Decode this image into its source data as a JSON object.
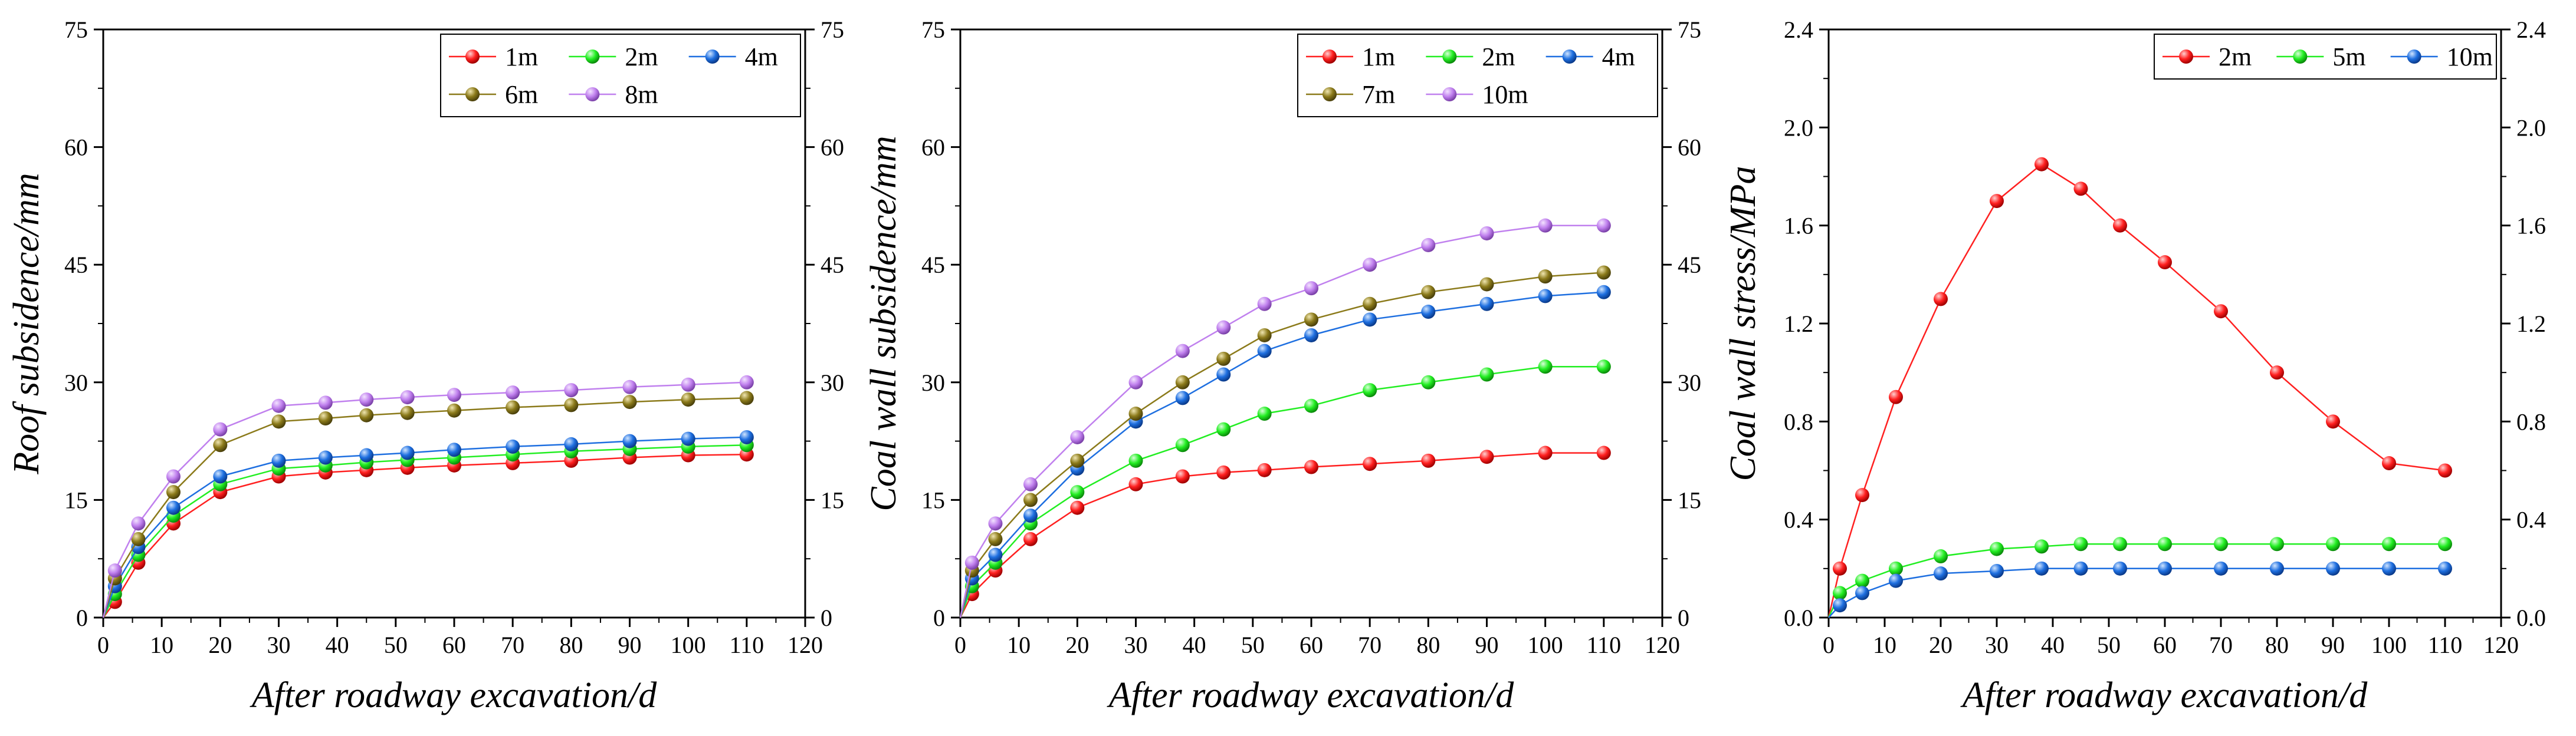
{
  "chart_data": [
    {
      "type": "line",
      "xlabel": "After roadway excavation/d",
      "ylabel": "Roof subsidence/mm",
      "xlim": [
        0,
        120
      ],
      "ylim": [
        0,
        75
      ],
      "x_ticks": [
        0,
        10,
        20,
        30,
        40,
        50,
        60,
        70,
        80,
        90,
        100,
        110,
        120
      ],
      "y_ticks": [
        0,
        15,
        30,
        45,
        60,
        75
      ],
      "right_axis_mirror": true,
      "legend_position": "top-right",
      "legend_columns": 3,
      "series": [
        {
          "name": "1m",
          "color": "#ff2020",
          "x": [
            0,
            2,
            6,
            12,
            20,
            30,
            38,
            45,
            52,
            60,
            70,
            80,
            90,
            100,
            110
          ],
          "y": [
            0,
            2,
            7,
            12,
            16,
            18,
            18.5,
            18.8,
            19.1,
            19.4,
            19.7,
            20,
            20.4,
            20.7,
            20.8
          ]
        },
        {
          "name": "2m",
          "color": "#22ee22",
          "x": [
            0,
            2,
            6,
            12,
            20,
            30,
            38,
            45,
            52,
            60,
            70,
            80,
            90,
            100,
            110
          ],
          "y": [
            0,
            3,
            8,
            13,
            17,
            19,
            19.4,
            19.8,
            20.1,
            20.4,
            20.8,
            21.2,
            21.5,
            21.8,
            22
          ]
        },
        {
          "name": "4m",
          "color": "#1e6fe0",
          "x": [
            0,
            2,
            6,
            12,
            20,
            30,
            38,
            45,
            52,
            60,
            70,
            80,
            90,
            100,
            110
          ],
          "y": [
            0,
            4,
            9,
            14,
            18,
            20,
            20.4,
            20.7,
            21,
            21.4,
            21.8,
            22.1,
            22.5,
            22.8,
            23
          ]
        },
        {
          "name": "6m",
          "color": "#8b7a1a",
          "x": [
            0,
            2,
            6,
            12,
            20,
            30,
            38,
            45,
            52,
            60,
            70,
            80,
            90,
            100,
            110
          ],
          "y": [
            0,
            5,
            10,
            16,
            22,
            25,
            25.4,
            25.8,
            26.1,
            26.4,
            26.8,
            27.1,
            27.5,
            27.8,
            28
          ]
        },
        {
          "name": "8m",
          "color": "#c080ee",
          "x": [
            0,
            2,
            6,
            12,
            20,
            30,
            38,
            45,
            52,
            60,
            70,
            80,
            90,
            100,
            110
          ],
          "y": [
            0,
            6,
            12,
            18,
            24,
            27,
            27.4,
            27.8,
            28.1,
            28.4,
            28.7,
            29,
            29.4,
            29.7,
            30
          ]
        }
      ]
    },
    {
      "type": "line",
      "xlabel": "After roadway excavation/d",
      "ylabel": "Coal wall subsidence/mm",
      "xlim": [
        0,
        120
      ],
      "ylim": [
        0,
        75
      ],
      "x_ticks": [
        0,
        10,
        20,
        30,
        40,
        50,
        60,
        70,
        80,
        90,
        100,
        110,
        120
      ],
      "y_ticks": [
        0,
        15,
        30,
        45,
        60,
        75
      ],
      "right_axis_mirror": true,
      "legend_position": "top-right",
      "legend_columns": 3,
      "series": [
        {
          "name": "1m",
          "color": "#ff2020",
          "x": [
            0,
            2,
            6,
            12,
            20,
            30,
            38,
            45,
            52,
            60,
            70,
            80,
            90,
            100,
            110
          ],
          "y": [
            0,
            3,
            6,
            10,
            14,
            17,
            18,
            18.5,
            18.8,
            19.2,
            19.6,
            20,
            20.5,
            21,
            21
          ]
        },
        {
          "name": "2m",
          "color": "#22ee22",
          "x": [
            0,
            2,
            6,
            12,
            20,
            30,
            38,
            45,
            52,
            60,
            70,
            80,
            90,
            100,
            110
          ],
          "y": [
            0,
            4,
            7,
            12,
            16,
            20,
            22,
            24,
            26,
            27,
            29,
            30,
            31,
            32,
            32
          ]
        },
        {
          "name": "4m",
          "color": "#1e6fe0",
          "x": [
            0,
            2,
            6,
            12,
            20,
            30,
            38,
            45,
            52,
            60,
            70,
            80,
            90,
            100,
            110
          ],
          "y": [
            0,
            5,
            8,
            13,
            19,
            25,
            28,
            31,
            34,
            36,
            38,
            39,
            40,
            41,
            41.5
          ]
        },
        {
          "name": "7m",
          "color": "#8b7a1a",
          "x": [
            0,
            2,
            6,
            12,
            20,
            30,
            38,
            45,
            52,
            60,
            70,
            80,
            90,
            100,
            110
          ],
          "y": [
            0,
            6,
            10,
            15,
            20,
            26,
            30,
            33,
            36,
            38,
            40,
            41.5,
            42.5,
            43.5,
            44
          ]
        },
        {
          "name": "10m",
          "color": "#c080ee",
          "x": [
            0,
            2,
            6,
            12,
            20,
            30,
            38,
            45,
            52,
            60,
            70,
            80,
            90,
            100,
            110
          ],
          "y": [
            0,
            7,
            12,
            17,
            23,
            30,
            34,
            37,
            40,
            42,
            45,
            47.5,
            49,
            50,
            50
          ]
        }
      ]
    },
    {
      "type": "line",
      "xlabel": "After roadway excavation/d",
      "ylabel": "Coal wall stress/MPa",
      "xlim": [
        0,
        120
      ],
      "ylim": [
        0,
        2.4
      ],
      "x_ticks": [
        0,
        10,
        20,
        30,
        40,
        50,
        60,
        70,
        80,
        90,
        100,
        110,
        120
      ],
      "y_ticks": [
        "0.0",
        "0.4",
        "0.8",
        "1.2",
        "1.6",
        "2.0",
        "2.4"
      ],
      "right_axis_mirror": true,
      "legend_position": "top-right",
      "legend_columns": 3,
      "series": [
        {
          "name": "2m",
          "color": "#ff2020",
          "x": [
            0,
            2,
            6,
            12,
            20,
            30,
            38,
            45,
            52,
            60,
            70,
            80,
            90,
            100,
            110
          ],
          "y": [
            0,
            0.2,
            0.5,
            0.9,
            1.3,
            1.7,
            1.85,
            1.75,
            1.6,
            1.45,
            1.25,
            1.0,
            0.8,
            0.63,
            0.6
          ]
        },
        {
          "name": "5m",
          "color": "#22ee22",
          "x": [
            0,
            2,
            6,
            12,
            20,
            30,
            38,
            45,
            52,
            60,
            70,
            80,
            90,
            100,
            110
          ],
          "y": [
            0,
            0.1,
            0.15,
            0.2,
            0.25,
            0.28,
            0.29,
            0.3,
            0.3,
            0.3,
            0.3,
            0.3,
            0.3,
            0.3,
            0.3
          ]
        },
        {
          "name": "10m",
          "color": "#1e6fe0",
          "x": [
            0,
            2,
            6,
            12,
            20,
            30,
            38,
            45,
            52,
            60,
            70,
            80,
            90,
            100,
            110
          ],
          "y": [
            0,
            0.05,
            0.1,
            0.15,
            0.18,
            0.19,
            0.2,
            0.2,
            0.2,
            0.2,
            0.2,
            0.2,
            0.2,
            0.2,
            0.2
          ]
        }
      ]
    }
  ]
}
